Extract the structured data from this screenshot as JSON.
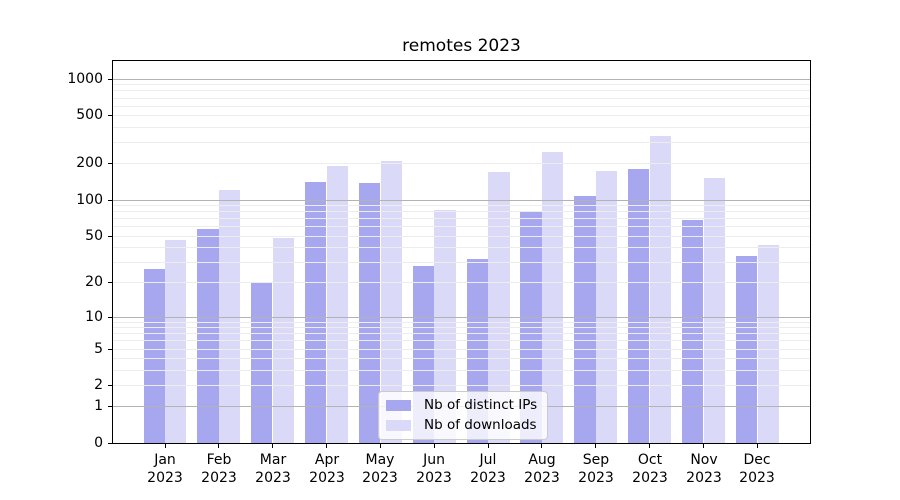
{
  "title": "remotes 2023",
  "chart_data": {
    "type": "bar",
    "title": "remotes 2023",
    "yscale": "log10(value+1)",
    "ylim": [
      0,
      1400
    ],
    "grid": true,
    "legend_position": "lower center",
    "categories": [
      "Jan 2023",
      "Feb 2023",
      "Mar 2023",
      "Apr 2023",
      "May 2023",
      "Jun 2023",
      "Jul 2023",
      "Aug 2023",
      "Sep 2023",
      "Oct 2023",
      "Nov 2023",
      "Dec 2023"
    ],
    "yticks": [
      1000,
      500,
      200,
      100,
      50,
      20,
      10,
      5,
      2,
      1,
      0
    ],
    "major_grid_values": [
      1,
      10,
      100,
      1000
    ],
    "series": [
      {
        "name": "Nb of distinct IPs",
        "color": "#a7a7f0",
        "values": [
          26,
          57,
          20,
          139,
          138,
          28,
          32,
          79,
          108,
          181,
          68,
          34
        ]
      },
      {
        "name": "Nb of downloads",
        "color": "#dadaf8",
        "values": [
          46,
          120,
          48,
          189,
          210,
          82,
          170,
          248,
          174,
          339,
          151,
          42
        ]
      }
    ]
  }
}
